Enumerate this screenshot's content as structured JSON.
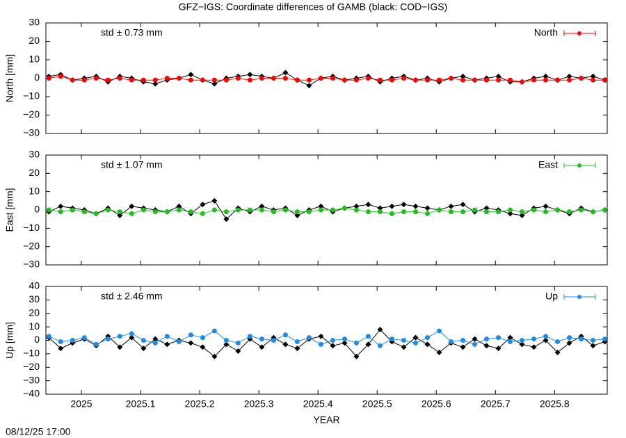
{
  "title": "GFZ−IGS: Coordinate differences of GAMB (black: COD−IGS)",
  "footer": "08/12/25 17:00",
  "chart_data": [
    {
      "type": "line",
      "ylabel": "North [mm]",
      "annotation": "std ± 0.73 mm",
      "annotation_color": "#ff0000",
      "xlim": [
        2024.94,
        2025.889
      ],
      "xticks": [
        2025,
        2025.1,
        2025.2,
        2025.3,
        2025.4,
        2025.5,
        2025.6,
        2025.7,
        2025.8
      ],
      "ylim": [
        -30,
        30
      ],
      "yticks": [
        {
          "value": -30,
          "label": "−30"
        },
        {
          "value": -20,
          "label": "−20"
        },
        {
          "value": -10,
          "label": "−10"
        },
        0,
        10,
        20,
        30
      ],
      "x": [
        2024.945,
        2024.965,
        2024.985,
        2025.005,
        2025.025,
        2025.045,
        2025.065,
        2025.085,
        2025.105,
        2025.125,
        2025.145,
        2025.165,
        2025.185,
        2025.205,
        2025.225,
        2025.245,
        2025.265,
        2025.285,
        2025.305,
        2025.325,
        2025.345,
        2025.365,
        2025.385,
        2025.405,
        2025.425,
        2025.445,
        2025.465,
        2025.485,
        2025.505,
        2025.525,
        2025.545,
        2025.565,
        2025.585,
        2025.605,
        2025.625,
        2025.645,
        2025.665,
        2025.685,
        2025.705,
        2025.725,
        2025.745,
        2025.765,
        2025.785,
        2025.805,
        2025.825,
        2025.845,
        2025.865,
        2025.885
      ],
      "series": [
        {
          "color": "#000000",
          "marker": "diamond",
          "values": [
            1,
            2,
            -1,
            0,
            1,
            -2,
            1,
            0,
            -2,
            -3,
            -1,
            0,
            2,
            -1,
            -3,
            0,
            1,
            2,
            1,
            0,
            3,
            -1,
            -4,
            0,
            1,
            -1,
            0,
            1,
            -2,
            0,
            1,
            -1,
            0,
            -2,
            0,
            1,
            -1,
            0,
            1,
            -2,
            -2,
            0,
            1,
            -1,
            1,
            0,
            1,
            -1
          ]
        },
        {
          "name": "North",
          "color": "#ff0000",
          "marker": "circle",
          "values": [
            0,
            1,
            -1,
            -1,
            0,
            -1,
            0,
            -1,
            -1,
            -1,
            0,
            0,
            -1,
            -1,
            -1,
            -1,
            0,
            -1,
            0,
            0,
            0,
            -1,
            -1,
            0,
            0,
            -1,
            -1,
            0,
            -1,
            -1,
            0,
            -1,
            -1,
            -1,
            0,
            -1,
            -1,
            -1,
            -1,
            -1,
            -2,
            -1,
            -1,
            -1,
            -1,
            0,
            -1,
            -1
          ]
        }
      ]
    },
    {
      "type": "line",
      "ylabel": "East [mm]",
      "annotation": "std ± 1.07 mm",
      "annotation_color": "#1fbf1f",
      "xlim": [
        2024.94,
        2025.889
      ],
      "xticks": [
        2025,
        2025.1,
        2025.2,
        2025.3,
        2025.4,
        2025.5,
        2025.6,
        2025.7,
        2025.8
      ],
      "ylim": [
        -30,
        30
      ],
      "yticks": [
        {
          "value": -30,
          "label": "−30"
        },
        {
          "value": -20,
          "label": "−20"
        },
        {
          "value": -10,
          "label": "−10"
        },
        0,
        10,
        20,
        30
      ],
      "x": [
        2024.945,
        2024.965,
        2024.985,
        2025.005,
        2025.025,
        2025.045,
        2025.065,
        2025.085,
        2025.105,
        2025.125,
        2025.145,
        2025.165,
        2025.185,
        2025.205,
        2025.225,
        2025.245,
        2025.265,
        2025.285,
        2025.305,
        2025.325,
        2025.345,
        2025.365,
        2025.385,
        2025.405,
        2025.425,
        2025.445,
        2025.465,
        2025.485,
        2025.505,
        2025.525,
        2025.545,
        2025.565,
        2025.585,
        2025.605,
        2025.625,
        2025.645,
        2025.665,
        2025.685,
        2025.705,
        2025.725,
        2025.745,
        2025.765,
        2025.785,
        2025.805,
        2025.825,
        2025.845,
        2025.865,
        2025.885
      ],
      "series": [
        {
          "color": "#000000",
          "marker": "diamond",
          "values": [
            -1,
            2,
            1,
            0,
            -2,
            1,
            -3,
            2,
            1,
            0,
            -1,
            2,
            -2,
            3,
            5,
            -5,
            1,
            -1,
            2,
            0,
            1,
            -3,
            0,
            2,
            -1,
            1,
            2,
            3,
            1,
            2,
            3,
            2,
            1,
            0,
            2,
            3,
            -1,
            1,
            0,
            -2,
            -3,
            1,
            2,
            0,
            -2,
            1,
            -1,
            0
          ]
        },
        {
          "name": "East",
          "color": "#1fbf1f",
          "marker": "circle",
          "values": [
            0,
            -1,
            0,
            -1,
            -2,
            0,
            -1,
            -2,
            0,
            -1,
            -1,
            0,
            -1,
            -2,
            0,
            -1,
            0,
            0,
            0,
            -1,
            0,
            -1,
            -1,
            0,
            0,
            1,
            0,
            -1,
            -1,
            -2,
            -1,
            -1,
            -2,
            0,
            -1,
            -1,
            0,
            -1,
            -1,
            0,
            -1,
            0,
            -1,
            0,
            -1,
            0,
            -1,
            0
          ]
        }
      ]
    },
    {
      "type": "line",
      "ylabel": "Up [mm]",
      "annotation": "std ± 2.46 mm",
      "annotation_color": "#1e8ce6",
      "xlabel": "YEAR",
      "xlim": [
        2024.94,
        2025.889
      ],
      "xticks": [
        2025,
        2025.1,
        2025.2,
        2025.3,
        2025.4,
        2025.5,
        2025.6,
        2025.7,
        2025.8
      ],
      "ylim": [
        -40,
        40
      ],
      "yticks": [
        {
          "value": -40,
          "label": "−40"
        },
        {
          "value": -30,
          "label": "−30"
        },
        {
          "value": -20,
          "label": "−20"
        },
        {
          "value": -10,
          "label": "−10"
        },
        0,
        10,
        20,
        30,
        40
      ],
      "x": [
        2024.945,
        2024.965,
        2024.985,
        2025.005,
        2025.025,
        2025.045,
        2025.065,
        2025.085,
        2025.105,
        2025.125,
        2025.145,
        2025.165,
        2025.185,
        2025.205,
        2025.225,
        2025.245,
        2025.265,
        2025.285,
        2025.305,
        2025.325,
        2025.345,
        2025.365,
        2025.385,
        2025.405,
        2025.425,
        2025.445,
        2025.465,
        2025.485,
        2025.505,
        2025.525,
        2025.545,
        2025.565,
        2025.585,
        2025.605,
        2025.625,
        2025.645,
        2025.665,
        2025.685,
        2025.705,
        2025.725,
        2025.745,
        2025.765,
        2025.785,
        2025.805,
        2025.825,
        2025.845,
        2025.865,
        2025.885
      ],
      "series": [
        {
          "color": "#000000",
          "marker": "diamond",
          "values": [
            2,
            -6,
            -2,
            1,
            -4,
            3,
            -5,
            2,
            -6,
            1,
            -3,
            0,
            -2,
            -5,
            -12,
            -3,
            -8,
            1,
            -5,
            2,
            -3,
            -6,
            1,
            3,
            -4,
            -2,
            -12,
            -3,
            8,
            -1,
            -5,
            2,
            -3,
            -9,
            -2,
            -5,
            1,
            -4,
            -6,
            2,
            -3,
            -5,
            0,
            -9,
            -2,
            3,
            -4,
            -1
          ]
        },
        {
          "name": "Up",
          "color": "#1e8ce6",
          "marker": "circle",
          "values": [
            3,
            -1,
            0,
            2,
            -3,
            1,
            3,
            5,
            0,
            -2,
            3,
            -1,
            4,
            2,
            7,
            0,
            -2,
            3,
            1,
            0,
            4,
            -1,
            2,
            -3,
            0,
            1,
            -2,
            3,
            -4,
            1,
            0,
            -2,
            2,
            7,
            -1,
            0,
            -3,
            1,
            2,
            -1,
            0,
            1,
            3,
            -1,
            2,
            1,
            0,
            1
          ]
        }
      ]
    }
  ]
}
